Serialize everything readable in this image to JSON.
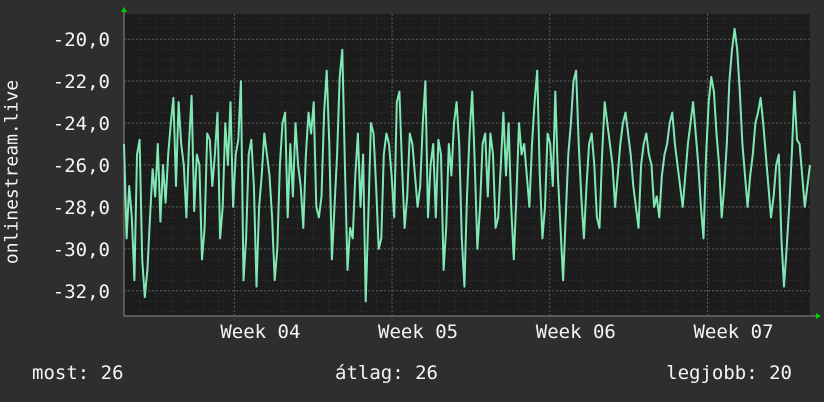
{
  "chart_data": {
    "type": "line",
    "ylabel": "onlinestream.live",
    "ylim": [
      -33.2,
      -18.8
    ],
    "yticks": [
      -32,
      -30,
      -28,
      -26,
      -24,
      -22,
      -20
    ],
    "ytick_labels": [
      "-32,0",
      "-30,0",
      "-28,0",
      "-26,0",
      "-24,0",
      "-22,0",
      "-20,0"
    ],
    "xlim": [
      0,
      43.5
    ],
    "xticks": [
      7,
      17,
      27,
      37
    ],
    "xtick_labels": [
      "Week 04",
      "Week 05",
      "Week 06",
      "Week 07"
    ],
    "grid": true,
    "colors": {
      "background": "#2e2e2e",
      "plot_background": "#1c1c1c",
      "series": "#7fe8b4",
      "grid": "#5a5a5a",
      "arrow": "#00d000",
      "text": "#f5f5f5"
    },
    "series": [
      {
        "values": [
          -25.0,
          -29.5,
          -27.0,
          -28.5,
          -31.5,
          -25.5,
          -24.8,
          -30.5,
          -32.3,
          -31.0,
          -28.5,
          -26.2,
          -27.5,
          -25.0,
          -28.7,
          -26.0,
          -27.8,
          -25.5,
          -24.0,
          -22.8,
          -27.0,
          -23.0,
          -25.0,
          -26.0,
          -28.5,
          -25.0,
          -22.7,
          -28.2,
          -25.5,
          -26.0,
          -30.5,
          -29.0,
          -24.5,
          -24.8,
          -27.0,
          -25.5,
          -23.5,
          -29.5,
          -28.0,
          -24.0,
          -26.0,
          -23.0,
          -28.0,
          -25.5,
          -24.8,
          -22.0,
          -31.5,
          -29.5,
          -25.5,
          -24.8,
          -27.0,
          -31.8,
          -28.0,
          -26.5,
          -24.5,
          -25.5,
          -26.5,
          -28.5,
          -31.5,
          -30.0,
          -26.0,
          -24.0,
          -23.5,
          -28.5,
          -25.0,
          -27.5,
          -24.0,
          -26.0,
          -27.0,
          -29.0,
          -25.5,
          -23.5,
          -24.5,
          -23.0,
          -28.0,
          -28.5,
          -27.5,
          -23.5,
          -21.5,
          -25.0,
          -30.5,
          -28.0,
          -25.5,
          -21.8,
          -20.5,
          -26.0,
          -31.0,
          -29.0,
          -29.5,
          -26.5,
          -24.5,
          -28.0,
          -25.5,
          -32.5,
          -28.5,
          -24.0,
          -24.5,
          -27.0,
          -30.0,
          -29.5,
          -25.5,
          -24.5,
          -25.0,
          -26.5,
          -28.5,
          -23.0,
          -22.5,
          -26.0,
          -29.0,
          -27.5,
          -24.5,
          -25.0,
          -26.5,
          -28.0,
          -27.0,
          -24.0,
          -22.0,
          -28.5,
          -26.0,
          -25.0,
          -28.5,
          -24.8,
          -25.5,
          -31.0,
          -29.0,
          -25.0,
          -26.5,
          -24.0,
          -23.0,
          -25.0,
          -29.5,
          -31.8,
          -27.5,
          -24.5,
          -22.5,
          -26.0,
          -30.0,
          -28.0,
          -25.0,
          -24.5,
          -27.5,
          -24.5,
          -25.5,
          -29.0,
          -28.5,
          -26.0,
          -23.5,
          -26.5,
          -24.0,
          -28.0,
          -30.5,
          -27.5,
          -24.0,
          -25.5,
          -25.0,
          -26.5,
          -28.0,
          -25.0,
          -23.0,
          -21.5,
          -26.5,
          -29.5,
          -28.0,
          -24.5,
          -25.0,
          -27.0,
          -22.5,
          -26.5,
          -29.0,
          -31.5,
          -28.5,
          -25.5,
          -24.0,
          -22.0,
          -21.5,
          -25.0,
          -27.5,
          -29.5,
          -27.0,
          -25.0,
          -24.5,
          -26.0,
          -28.5,
          -29.0,
          -25.5,
          -23.0,
          -24.0,
          -25.0,
          -26.0,
          -28.0,
          -26.5,
          -25.0,
          -24.0,
          -23.5,
          -24.5,
          -25.5,
          -27.0,
          -28.0,
          -29.0,
          -26.0,
          -25.0,
          -24.5,
          -25.5,
          -26.0,
          -28.0,
          -27.5,
          -28.5,
          -26.5,
          -25.5,
          -25.0,
          -24.0,
          -23.5,
          -25.0,
          -26.0,
          -27.0,
          -28.0,
          -26.5,
          -25.0,
          -24.0,
          -23.0,
          -24.5,
          -26.0,
          -28.0,
          -29.5,
          -25.5,
          -23.0,
          -21.8,
          -22.5,
          -24.5,
          -26.0,
          -28.5,
          -27.0,
          -25.0,
          -22.0,
          -20.5,
          -19.5,
          -20.5,
          -22.5,
          -25.0,
          -26.5,
          -28.0,
          -26.5,
          -25.5,
          -24.0,
          -23.5,
          -22.8,
          -24.0,
          -25.5,
          -27.0,
          -28.5,
          -27.5,
          -26.0,
          -25.5,
          -29.5,
          -31.8,
          -30.0,
          -28.0,
          -25.5,
          -22.5,
          -24.8,
          -25.0,
          -26.5,
          -28.0,
          -27.0,
          -26.0
        ]
      }
    ]
  },
  "legend": {
    "current": "most: 26",
    "average": "átlag: 26",
    "max": "legjobb: 20"
  }
}
